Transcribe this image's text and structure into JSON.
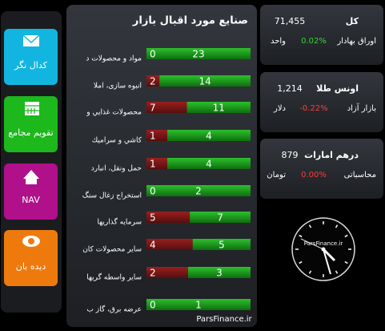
{
  "tiles": [
    {
      "label": "کدال نگر",
      "color": "#12b5e0"
    },
    {
      "label": "تقویم مجامع",
      "color": "#1cb81c"
    },
    {
      "label": "NAV",
      "color": "#b0108a"
    },
    {
      "label": "دیده بان",
      "color": "#ee7a0e"
    }
  ],
  "industries": {
    "title": "صنایع مورد اقبال بازار",
    "rows": [
      {
        "name": "مواد و محصولات د",
        "negative": 0,
        "positive": 23
      },
      {
        "name": "انبوه سازی، املا",
        "negative": 2,
        "positive": 14
      },
      {
        "name": "محصولات غذايي و",
        "negative": 7,
        "positive": 11
      },
      {
        "name": "کاشي و سراميك",
        "negative": 1,
        "positive": 4
      },
      {
        "name": "حمل ونقل، انبارد",
        "negative": 1,
        "positive": 4
      },
      {
        "name": "استخراج زغال سنگ",
        "negative": 0,
        "positive": 2
      },
      {
        "name": "سرمايه گذاريها",
        "negative": 5,
        "positive": 7
      },
      {
        "name": "ساير محصولات كان",
        "negative": 4,
        "positive": 5
      },
      {
        "name": "ساير واسطه گريها",
        "negative": 2,
        "positive": 3
      },
      {
        "name": "عرضه برق، گاز ب",
        "negative": 0,
        "positive": 1
      }
    ]
  },
  "quotes": [
    {
      "title": "کل",
      "value": "71,455",
      "market": "اوراق بهادار",
      "change": "0.02%",
      "change_color": "#37d437",
      "unit": "واحد"
    },
    {
      "title": "اونس طلا",
      "value": "1,214",
      "market": "بازار آزاد",
      "change": "-0.22%",
      "change_color": "#ff3b3b",
      "unit": "دلار"
    },
    {
      "title": "درهم امارات",
      "value": "879",
      "market": "محاسباتی",
      "change": "0.00%",
      "change_color": "#ff3b3b",
      "unit": "تومان"
    }
  ],
  "clock": {
    "brand": "ParsFinance.ir"
  },
  "footer": "ParsFinance.ir"
}
